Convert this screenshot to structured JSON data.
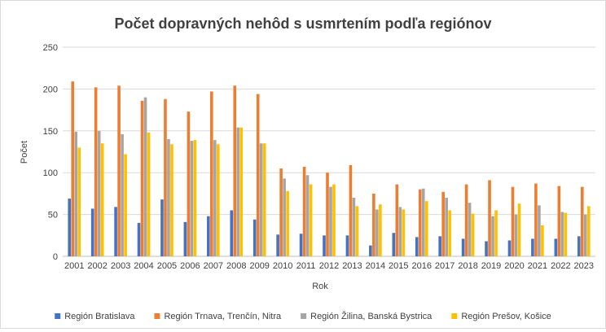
{
  "chart_data": {
    "type": "bar",
    "title": "Počet dopravných nehôd s usmrtením podľa regiónov",
    "xlabel": "Rok",
    "ylabel": "Počet",
    "ylim": [
      0,
      250
    ],
    "yticks": [
      0,
      50,
      100,
      150,
      200,
      250
    ],
    "grid": true,
    "legend_position": "bottom",
    "categories": [
      "2001",
      "2002",
      "2003",
      "2004",
      "2005",
      "2006",
      "2007",
      "2008",
      "2009",
      "2010",
      "2011",
      "2012",
      "2013",
      "2014",
      "2015",
      "2016",
      "2017",
      "2018",
      "2019",
      "2020",
      "2021",
      "2022",
      "2023"
    ],
    "series": [
      {
        "name": "Región Bratislava",
        "color": "#4472C4",
        "values": [
          69,
          57,
          59,
          40,
          68,
          41,
          48,
          55,
          44,
          26,
          27,
          25,
          25,
          13,
          28,
          23,
          24,
          21,
          18,
          19,
          21,
          21,
          24
        ]
      },
      {
        "name": "Región Trnava, Trenčín, Nitra",
        "color": "#ED7D31",
        "values": [
          209,
          202,
          204,
          186,
          188,
          173,
          197,
          204,
          194,
          105,
          107,
          100,
          109,
          75,
          86,
          80,
          77,
          86,
          91,
          83,
          87,
          84,
          83
        ]
      },
      {
        "name": "Región Žilina, Banská Bystrica",
        "color": "#A5A5A5",
        "values": [
          149,
          150,
          146,
          190,
          140,
          138,
          139,
          154,
          135,
          93,
          97,
          83,
          70,
          56,
          59,
          81,
          70,
          64,
          48,
          50,
          61,
          53,
          50
        ]
      },
      {
        "name": "Región Prešov, Košice",
        "color": "#FFC000",
        "values": [
          130,
          135,
          122,
          148,
          134,
          139,
          134,
          154,
          135,
          78,
          86,
          86,
          60,
          62,
          56,
          66,
          55,
          51,
          55,
          63,
          37,
          52,
          60
        ]
      }
    ]
  }
}
